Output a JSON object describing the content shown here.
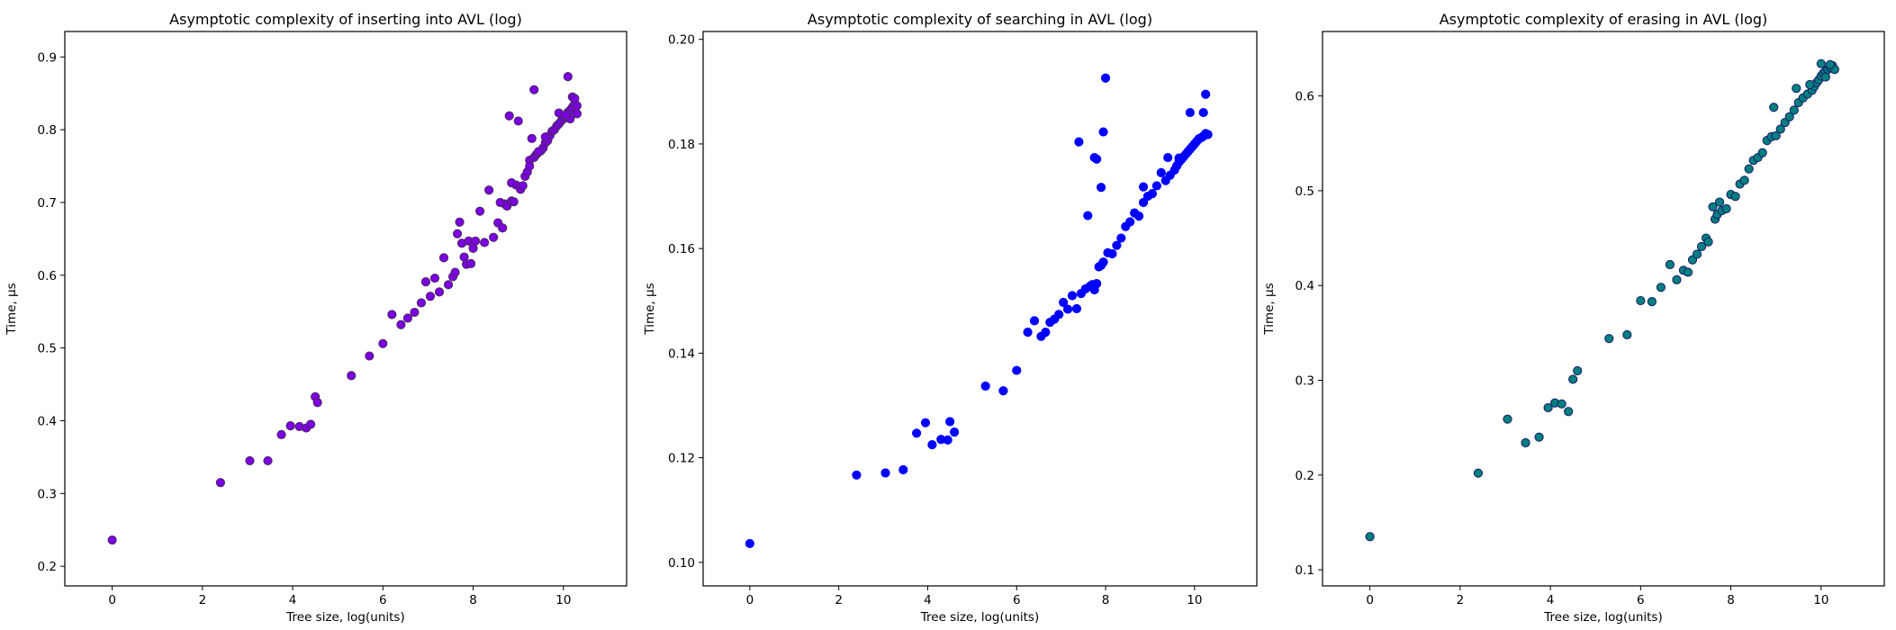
{
  "chart_data": [
    {
      "type": "scatter",
      "title": "Asymptotic complexity of inserting into AVL (log)",
      "xlabel": "Tree size, log(units)",
      "ylabel": "Time, μs",
      "xlim": [
        -1.05,
        11.4
      ],
      "ylim": [
        0.173,
        0.935
      ],
      "xticks": [
        0,
        2,
        4,
        6,
        8,
        10
      ],
      "yticks": [
        0.2,
        0.3,
        0.4,
        0.5,
        0.6,
        0.7,
        0.8,
        0.9
      ],
      "grid": false,
      "marker": {
        "fill": "#7b00e0",
        "edge": "#4a2a60"
      },
      "series": [
        {
          "x": [
            0.0,
            2.4,
            3.05,
            3.45,
            3.75,
            3.95,
            4.15,
            4.3,
            4.4,
            4.5,
            4.55,
            5.3,
            5.7,
            6.0,
            6.2,
            6.4,
            6.55,
            6.7,
            6.85,
            6.95,
            7.05,
            7.15,
            7.25,
            7.35,
            7.45,
            7.55,
            7.6,
            7.65,
            7.7,
            7.75,
            7.8,
            7.85,
            7.9,
            7.95,
            8.0,
            8.05,
            8.15,
            8.25,
            8.35,
            8.45,
            8.55,
            8.65,
            8.7,
            8.75,
            8.8,
            8.85,
            8.9,
            8.95,
            9.0,
            9.05,
            9.1,
            9.15,
            9.2,
            9.25,
            9.3,
            9.35,
            9.4,
            9.45,
            9.5,
            9.55,
            9.6,
            9.65,
            9.7,
            9.75,
            9.8,
            9.85,
            9.9,
            9.95,
            10.0,
            10.05,
            10.1,
            10.15,
            10.2,
            10.25,
            10.3,
            8.6,
            8.85,
            9.25,
            9.35,
            9.45,
            9.6,
            9.9,
            10.1,
            10.2,
            10.25,
            10.3,
            10.15,
            10.05
          ],
          "y": [
            0.236,
            0.315,
            0.345,
            0.345,
            0.381,
            0.393,
            0.392,
            0.39,
            0.395,
            0.433,
            0.425,
            0.462,
            0.489,
            0.506,
            0.546,
            0.532,
            0.541,
            0.549,
            0.562,
            0.591,
            0.571,
            0.596,
            0.577,
            0.624,
            0.587,
            0.598,
            0.604,
            0.657,
            0.673,
            0.644,
            0.625,
            0.615,
            0.647,
            0.616,
            0.637,
            0.647,
            0.688,
            0.645,
            0.717,
            0.652,
            0.672,
            0.665,
            0.698,
            0.695,
            0.819,
            0.702,
            0.701,
            0.724,
            0.812,
            0.718,
            0.723,
            0.736,
            0.742,
            0.758,
            0.788,
            0.762,
            0.766,
            0.769,
            0.771,
            0.775,
            0.782,
            0.785,
            0.792,
            0.798,
            0.8,
            0.805,
            0.808,
            0.812,
            0.815,
            0.818,
            0.824,
            0.827,
            0.831,
            0.836,
            0.833,
            0.7,
            0.727,
            0.75,
            0.855,
            0.77,
            0.79,
            0.823,
            0.873,
            0.845,
            0.843,
            0.822,
            0.815,
            0.82
          ]
        }
      ]
    },
    {
      "type": "scatter",
      "title": "Asymptotic complexity of searching in AVL (log)",
      "xlabel": "Tree size, log(units)",
      "ylabel": "Time, μs",
      "xlim": [
        -1.05,
        11.4
      ],
      "ylim": [
        0.0955,
        0.2015
      ],
      "xticks": [
        0,
        2,
        4,
        6,
        8,
        10
      ],
      "yticks": [
        0.1,
        0.12,
        0.14,
        0.16,
        0.18,
        0.2
      ],
      "grid": false,
      "marker": {
        "fill": "#0000ff",
        "edge": "#0000ff"
      },
      "series": [
        {
          "x": [
            0.0,
            2.4,
            3.05,
            3.45,
            3.75,
            3.95,
            4.1,
            4.3,
            4.45,
            4.5,
            4.6,
            5.3,
            5.7,
            6.0,
            6.25,
            6.4,
            6.55,
            6.65,
            6.75,
            6.85,
            6.95,
            7.05,
            7.15,
            7.25,
            7.35,
            7.45,
            7.55,
            7.65,
            7.7,
            7.75,
            7.8,
            7.85,
            7.9,
            7.95,
            8.05,
            8.15,
            8.25,
            8.35,
            8.45,
            8.55,
            8.65,
            8.75,
            8.85,
            8.95,
            9.05,
            9.15,
            9.25,
            9.35,
            9.45,
            9.55,
            9.6,
            9.65,
            9.7,
            9.75,
            9.8,
            9.85,
            9.9,
            9.95,
            10.0,
            10.05,
            10.1,
            10.15,
            10.2,
            10.25,
            10.3,
            7.4,
            7.6,
            7.75,
            7.9,
            7.95,
            8.0,
            7.8,
            8.85,
            9.4,
            9.65,
            9.9,
            10.2,
            10.25
          ],
          "y": [
            0.1036,
            0.1167,
            0.1171,
            0.1177,
            0.1247,
            0.1267,
            0.1225,
            0.1235,
            0.1234,
            0.1269,
            0.1249,
            0.1337,
            0.1328,
            0.1367,
            0.144,
            0.1462,
            0.1432,
            0.144,
            0.1459,
            0.1465,
            0.1474,
            0.1497,
            0.1484,
            0.151,
            0.1485,
            0.1514,
            0.1523,
            0.1528,
            0.1531,
            0.1521,
            0.1533,
            0.1565,
            0.1568,
            0.1574,
            0.1592,
            0.159,
            0.1606,
            0.162,
            0.1642,
            0.1651,
            0.1668,
            0.1662,
            0.1688,
            0.17,
            0.1705,
            0.172,
            0.1745,
            0.173,
            0.174,
            0.175,
            0.1758,
            0.1765,
            0.177,
            0.1775,
            0.178,
            0.1785,
            0.179,
            0.1795,
            0.18,
            0.1805,
            0.181,
            0.1812,
            0.1815,
            0.182,
            0.1818,
            0.1804,
            0.1663,
            0.1774,
            0.1717,
            0.1823,
            0.1926,
            0.1771,
            0.1718,
            0.1774,
            0.1773,
            0.186,
            0.186,
            0.1895
          ]
        }
      ]
    },
    {
      "type": "scatter",
      "title": "Asymptotic complexity of erasing in AVL (log)",
      "xlabel": "Tree size, log(units)",
      "ylabel": "Time, μs",
      "xlim": [
        -1.05,
        11.4
      ],
      "ylim": [
        0.083,
        0.668
      ],
      "xticks": [
        0,
        2,
        4,
        6,
        8,
        10
      ],
      "yticks": [
        0.1,
        0.2,
        0.3,
        0.4,
        0.5,
        0.6
      ],
      "grid": false,
      "marker": {
        "fill": "#007f7f",
        "edge": "#1a1a6a"
      },
      "series": [
        {
          "x": [
            0.0,
            2.4,
            3.05,
            3.45,
            3.75,
            3.95,
            4.1,
            4.25,
            4.4,
            4.5,
            4.6,
            5.3,
            5.7,
            6.0,
            6.25,
            6.45,
            6.65,
            6.8,
            6.95,
            7.05,
            7.15,
            7.25,
            7.35,
            7.45,
            7.5,
            7.6,
            7.65,
            7.7,
            7.75,
            7.8,
            7.9,
            8.0,
            8.1,
            8.2,
            8.3,
            8.4,
            8.5,
            8.6,
            8.7,
            8.8,
            8.9,
            9.0,
            9.1,
            9.2,
            9.3,
            9.4,
            9.5,
            9.6,
            9.7,
            9.8,
            9.85,
            9.9,
            9.95,
            10.0,
            10.05,
            10.1,
            10.15,
            10.2,
            10.25,
            10.3,
            8.95,
            9.45,
            9.75,
            10.0,
            10.2,
            10.1
          ],
          "y": [
            0.135,
            0.202,
            0.259,
            0.234,
            0.24,
            0.271,
            0.276,
            0.275,
            0.267,
            0.301,
            0.31,
            0.344,
            0.348,
            0.384,
            0.383,
            0.398,
            0.422,
            0.406,
            0.416,
            0.414,
            0.427,
            0.433,
            0.441,
            0.45,
            0.446,
            0.483,
            0.47,
            0.475,
            0.488,
            0.479,
            0.481,
            0.496,
            0.494,
            0.507,
            0.511,
            0.523,
            0.532,
            0.535,
            0.54,
            0.553,
            0.557,
            0.558,
            0.565,
            0.572,
            0.578,
            0.585,
            0.593,
            0.598,
            0.602,
            0.606,
            0.61,
            0.614,
            0.617,
            0.621,
            0.624,
            0.626,
            0.628,
            0.63,
            0.632,
            0.628,
            0.588,
            0.608,
            0.612,
            0.634,
            0.633,
            0.62
          ]
        }
      ]
    }
  ]
}
